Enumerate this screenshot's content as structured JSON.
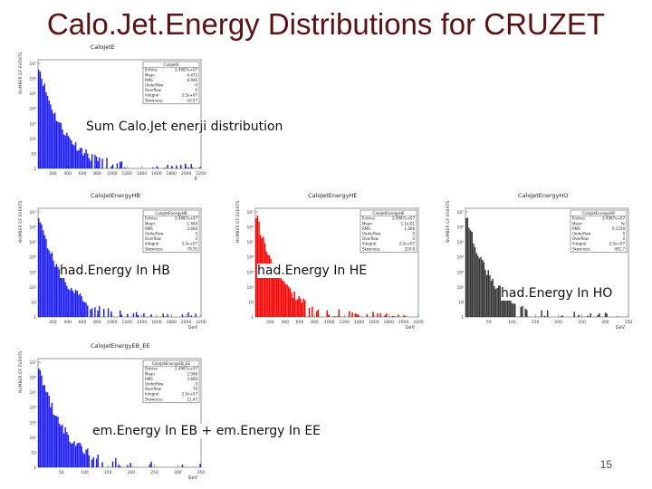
{
  "slide": {
    "title": "Calo.Jet.Energy Distributions for CRUZET",
    "page_number": "15",
    "captions": {
      "sum": "Sum Calo.Jet enerji distribution",
      "hb": "had.Energy In HB",
      "he": "had.Energy In HE",
      "ho": "had.Energy In HO",
      "ebee": "em.Energy In EB + em.Energy In EE"
    }
  },
  "colors": {
    "title": "#5a1212",
    "hb_series": "#1a1aff",
    "he_series": "#ff0000",
    "ho_series": "#333333"
  },
  "chart_data": [
    {
      "id": "calojete",
      "type": "bar",
      "title": "CaloJetE",
      "ylabel": "NUMBER OF EVENTS",
      "xlabel": "E",
      "log_y": true,
      "xlim": [
        0,
        2200
      ],
      "x_ticks": [
        "200",
        "400",
        "600",
        "800",
        "1000",
        "1200",
        "1400",
        "1600",
        "1800",
        "2000",
        "2200"
      ],
      "y_ticks": [
        "1",
        "10",
        "10²",
        "10³",
        "10⁴",
        "10⁵",
        "10⁶",
        "10⁷"
      ],
      "stats": [
        {
          "label": "CaloJetE",
          "value": ""
        },
        {
          "label": "Entries",
          "value": "2.4987e+07"
        },
        {
          "label": "Mean",
          "value": "4.475"
        },
        {
          "label": "RMS",
          "value": "6.906"
        },
        {
          "label": "Underflow",
          "value": "0"
        },
        {
          "label": "Overflow",
          "value": "0"
        },
        {
          "label": "Integral",
          "value": "2.5e+07"
        },
        {
          "label": "Skewness",
          "value": "16.57"
        }
      ],
      "series": [
        {
          "name": "CaloJetE",
          "color": "#1a1aff"
        }
      ]
    },
    {
      "id": "calojetenergyhb",
      "type": "bar",
      "title": "CaloJetEnergyHB",
      "ylabel": "NUMBER OF EVENTS",
      "xlabel": "GeV",
      "log_y": true,
      "xlim": [
        0,
        2200
      ],
      "x_ticks": [
        "200",
        "400",
        "600",
        "800",
        "1000",
        "1200",
        "1400",
        "1600",
        "1800",
        "2000",
        "2200"
      ],
      "y_ticks": [
        "1",
        "10",
        "10²",
        "10³",
        "10⁴",
        "10⁵",
        "10⁶",
        "10⁷"
      ],
      "stats": [
        {
          "label": "CaloJetEnergyHB",
          "value": ""
        },
        {
          "label": "Entries",
          "value": "2.4987e+07"
        },
        {
          "label": "Mean",
          "value": "1.444"
        },
        {
          "label": "RMS",
          "value": "3.666"
        },
        {
          "label": "Underflow",
          "value": "0"
        },
        {
          "label": "Overflow",
          "value": "0"
        },
        {
          "label": "Integral",
          "value": "2.5e+07"
        },
        {
          "label": "Skewness",
          "value": "79.70"
        }
      ],
      "series": [
        {
          "name": "CaloJetEnergyHB",
          "color": "#1a1aff"
        }
      ]
    },
    {
      "id": "calojetenergyhe",
      "type": "bar",
      "title": "CaloJetEnergyHE",
      "ylabel": "NUMBER OF EVENTS",
      "xlabel": "GeV",
      "log_y": true,
      "xlim": [
        0,
        2200
      ],
      "x_ticks": [
        "200",
        "400",
        "600",
        "800",
        "1000",
        "1200",
        "1400",
        "1600",
        "1800",
        "2000",
        "2200"
      ],
      "y_ticks": [
        "1",
        "10",
        "10²",
        "10³",
        "10⁴",
        "10⁵",
        "10⁶",
        "10⁷"
      ],
      "stats": [
        {
          "label": "CaloJetEnergyHE",
          "value": ""
        },
        {
          "label": "Entries",
          "value": "2.4987e+07"
        },
        {
          "label": "Mean",
          "value": "1.1e-01"
        },
        {
          "label": "RMS",
          "value": "1.566"
        },
        {
          "label": "Underflow",
          "value": "0"
        },
        {
          "label": "Overflow",
          "value": "0"
        },
        {
          "label": "Integral",
          "value": "2.5e+07"
        },
        {
          "label": "Skewness",
          "value": "224.8"
        }
      ],
      "series": [
        {
          "name": "CaloJetEnergyHE",
          "color": "#ff0000"
        }
      ]
    },
    {
      "id": "calojetenergyho",
      "type": "bar",
      "title": "CaloJetEnergyHO",
      "ylabel": "NUMBER OF EVENTS",
      "xlabel": "GeV",
      "log_y": true,
      "xlim": [
        0,
        350
      ],
      "x_ticks": [
        "50",
        "100",
        "150",
        "200",
        "250",
        "300",
        "350"
      ],
      "y_ticks": [
        "1",
        "10",
        "10²",
        "10³",
        "10⁴",
        "10⁵",
        "10⁶",
        "10⁷"
      ],
      "stats": [
        {
          "label": "CaloJetEnergyHO",
          "value": ""
        },
        {
          "label": "Entries",
          "value": "2.4987e+07"
        },
        {
          "label": "Mean",
          "value": "Ye"
        },
        {
          "label": "RMS",
          "value": "0.1729"
        },
        {
          "label": "Underflow",
          "value": "0"
        },
        {
          "label": "Overflow",
          "value": "0"
        },
        {
          "label": "Integral",
          "value": "2.5e+07"
        },
        {
          "label": "Skewness",
          "value": "481.7"
        }
      ],
      "series": [
        {
          "name": "CaloJetEnergyHO",
          "color": "#333333"
        }
      ]
    },
    {
      "id": "calojetenergyebee",
      "type": "bar",
      "title": "CaloJetEnergyEB_EE",
      "ylabel": "NUMBER OF EVENTS",
      "xlabel": "GeV",
      "log_y": true,
      "xlim": [
        0,
        350
      ],
      "x_ticks": [
        "50",
        "100",
        "150",
        "200",
        "250",
        "300",
        "350"
      ],
      "y_ticks": [
        "1",
        "10",
        "10²",
        "10³",
        "10⁴",
        "10⁵",
        "10⁶",
        "10⁷"
      ],
      "stats": [
        {
          "label": "CaloJetEnergyEB_EE",
          "value": ""
        },
        {
          "label": "Entries",
          "value": "2.4987e+07"
        },
        {
          "label": "Mean",
          "value": "2.948"
        },
        {
          "label": "RMS",
          "value": "3.669"
        },
        {
          "label": "Underflow",
          "value": "0"
        },
        {
          "label": "Overflow",
          "value": "79"
        },
        {
          "label": "Integral",
          "value": "2.5e+07"
        },
        {
          "label": "Skewness",
          "value": "11.47"
        }
      ],
      "series": [
        {
          "name": "CaloJetEnergyEB_EE",
          "color": "#1a1aff"
        }
      ]
    }
  ]
}
